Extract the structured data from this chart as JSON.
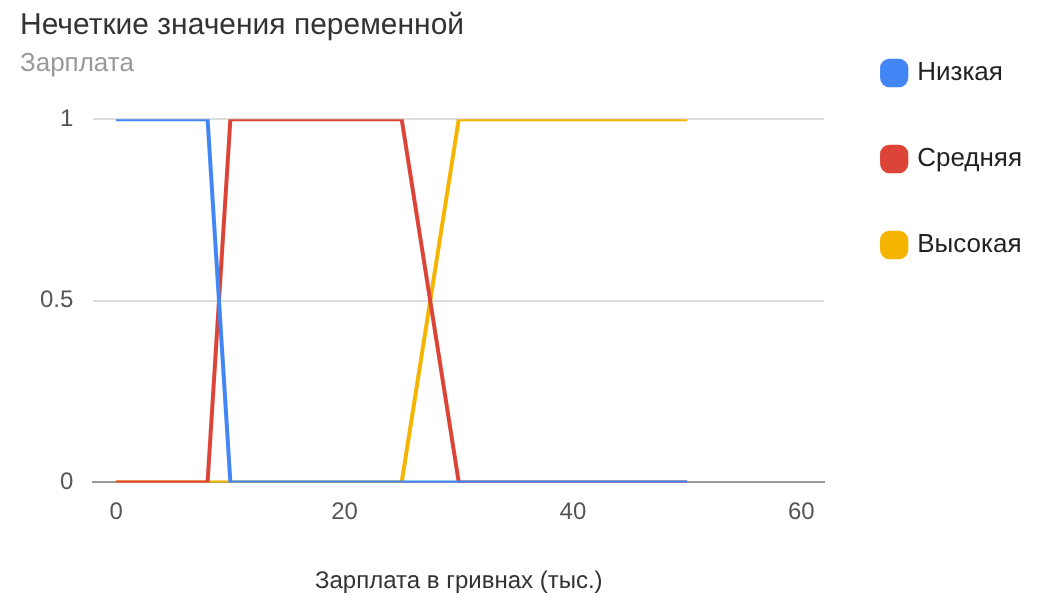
{
  "chart_data": {
    "type": "line",
    "title": "Нечеткие значения переменной",
    "subtitle": "Зарплата",
    "xlabel": "Зарплата в гривнах (тыс.)",
    "x": [
      0,
      8,
      10,
      25,
      30,
      50
    ],
    "series": [
      {
        "name": "Низкая",
        "color": "#4285f4",
        "values": [
          1,
          1,
          0,
          0,
          0,
          0
        ]
      },
      {
        "name": "Средняя",
        "color": "#db4437",
        "values": [
          0,
          0,
          1,
          1,
          0,
          0
        ]
      },
      {
        "name": "Высокая",
        "color": "#f4b400",
        "values": [
          0,
          0,
          0,
          0,
          1,
          1
        ]
      }
    ],
    "xlim": [
      -2,
      62
    ],
    "xticks": [
      0,
      20,
      40,
      60
    ],
    "ylim": [
      0,
      1
    ],
    "yticks": [
      0,
      0.5,
      1
    ],
    "grid": "y",
    "legend": "right",
    "marker": "none",
    "line_style": "solid"
  }
}
